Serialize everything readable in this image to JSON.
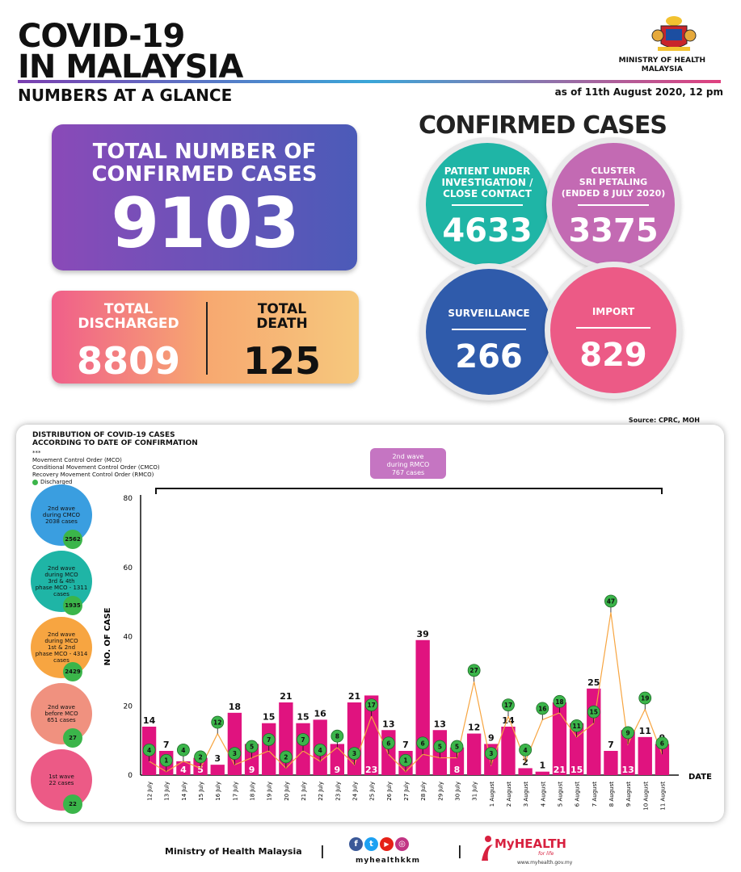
{
  "header": {
    "title_line1": "COVID-19",
    "title_line2": "IN MALAYSIA",
    "subtitle": "NUMBERS AT A GLANCE",
    "as_of": "as of 11th August 2020, 12 pm",
    "ministry_line1": "MINISTRY OF HEALTH",
    "ministry_line2": "MALAYSIA"
  },
  "totals": {
    "confirmed_label_line1": "TOTAL NUMBER OF",
    "confirmed_label_line2": "CONFIRMED CASES",
    "confirmed_value": "9103",
    "discharged_label_line1": "TOTAL",
    "discharged_label_line2": "DISCHARGED",
    "discharged_value": "8809",
    "death_label_line1": "TOTAL",
    "death_label_line2": "DEATH",
    "death_value": "125"
  },
  "confirmed_cases": {
    "title": "CONFIRMED CASES",
    "pui": {
      "label_line1": "PATIENT UNDER",
      "label_line2": "INVESTIGATION /",
      "label_line3": "CLOSE CONTACT",
      "value": "4633",
      "color": "#1fb5a6"
    },
    "cluster": {
      "label_line1": "CLUSTER",
      "label_line2": "SRI PETALING",
      "label_line3": "(ENDED 8 JULY 2020)",
      "value": "3375",
      "color": "#c36ab3"
    },
    "surveillance": {
      "label": "SURVEILLANCE",
      "value": "266",
      "color": "#2f5bab"
    },
    "import": {
      "label": "IMPORT",
      "value": "829",
      "color": "#ec5a86"
    }
  },
  "source": "Source: CPRC, MOH",
  "chart_panel": {
    "title_line1": "DISTRIBUTION OF COVID-19 CASES",
    "title_line2": "ACCORDING TO DATE OF CONFIRMATION",
    "legend_stars": "***",
    "legend_mco": "Movement Control Order (MCO)",
    "legend_cmco": "Conditional Movement Control Order (CMCO)",
    "legend_rmco": "Recovery Movement Control Order (RMCO)",
    "legend_discharged": "Discharged",
    "wave_bubble_line1": "2nd wave",
    "wave_bubble_line2": "during RMCO",
    "wave_bubble_line3": "767 cases",
    "side_waves": [
      {
        "line1": "2nd wave",
        "line2": "during CMCO",
        "line3": "2038 cases",
        "line4": "",
        "discharged": "2562",
        "color": "#3a9ee0"
      },
      {
        "line1": "2nd wave",
        "line2": "during MCO",
        "line3": "3rd & 4th",
        "line4": "phase MCO - 1311 cases",
        "discharged": "1935",
        "color": "#1fb5a6"
      },
      {
        "line1": "2nd wave",
        "line2": "during MCO",
        "line3": "1st & 2nd",
        "line4": "phase MCO - 4314 cases",
        "discharged": "2429",
        "color": "#f7a541"
      },
      {
        "line1": "2nd wave",
        "line2": "before MCO",
        "line3": "651 cases",
        "line4": "",
        "discharged": "27",
        "color": "#f0917f"
      },
      {
        "line1": "1st wave",
        "line2": "22 cases",
        "line3": "",
        "line4": "",
        "discharged": "22",
        "color": "#ec5a86"
      }
    ]
  },
  "chart_data": {
    "type": "bar",
    "title": "DISTRIBUTION OF COVID-19 CASES ACCORDING TO DATE OF CONFIRMATION",
    "xlabel": "DATE",
    "ylabel": "NO. OF CASE",
    "ylim": [
      0,
      80
    ],
    "yticks": [
      0,
      20,
      40,
      60,
      80
    ],
    "categories": [
      "12 July",
      "13 July",
      "14 July",
      "15 July",
      "16 July",
      "17 July",
      "18 July",
      "19 July",
      "20 July",
      "21 July",
      "22 July",
      "23 July",
      "24 July",
      "25 July",
      "26 July",
      "27 July",
      "28 July",
      "29 July",
      "30 July",
      "31 July",
      "1 August",
      "2 August",
      "3 August",
      "4 August",
      "5 August",
      "6 August",
      "7 August",
      "8 August",
      "9 August",
      "10 August",
      "11 August"
    ],
    "series": [
      {
        "name": "New cases",
        "type": "bar",
        "color": "#e0137f",
        "values": [
          14,
          7,
          4,
          5,
          3,
          18,
          9,
          15,
          21,
          15,
          16,
          9,
          21,
          23,
          13,
          7,
          39,
          13,
          8,
          12,
          9,
          14,
          2,
          1,
          21,
          15,
          25,
          7,
          13,
          11,
          9
        ],
        "label_inside": [
          false,
          false,
          true,
          true,
          false,
          false,
          true,
          false,
          false,
          false,
          false,
          true,
          false,
          true,
          false,
          false,
          false,
          false,
          true,
          false,
          false,
          false,
          false,
          false,
          true,
          true,
          false,
          false,
          true,
          false,
          false
        ]
      },
      {
        "name": "Discharged",
        "type": "line",
        "color": "#f7a541",
        "values": [
          4,
          1,
          4,
          2,
          12,
          3,
          5,
          7,
          2,
          7,
          4,
          8,
          3,
          17,
          6,
          1,
          6,
          5,
          5,
          27,
          3,
          17,
          4,
          16,
          18,
          11,
          15,
          47,
          9,
          19,
          6
        ]
      }
    ]
  },
  "footer": {
    "ministry": "Ministry of Health Malaysia",
    "separator": "|",
    "social_handle": "myhealthkkm",
    "icon_f": "f",
    "icon_t": "t",
    "icon_y": "▶",
    "icon_i": "◎",
    "brand": "MyHEALTH",
    "tagline": "for life",
    "url": "www.myhealth.gov.my"
  }
}
